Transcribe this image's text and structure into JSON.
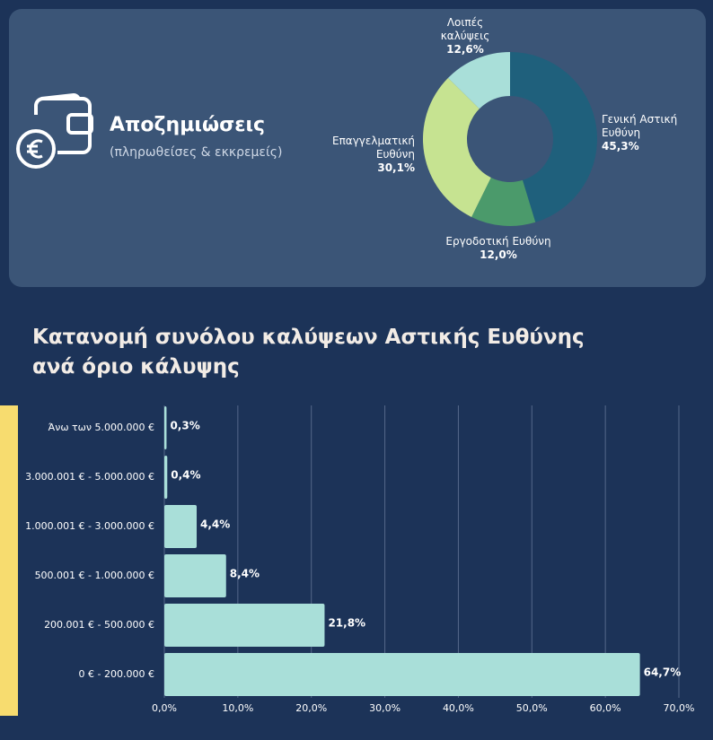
{
  "chart_data": [
    {
      "type": "donut",
      "title": "Αποζημιώσεις",
      "subtitle": "(πληρωθείσες & εκκρεμείς)",
      "categories": [
        "Γενική Αστική Ευθύνη",
        "Εργοδοτική Ευθύνη",
        "Επαγγελματική Ευθύνη",
        "Λοιπές καλύψεις"
      ],
      "values": [
        45.3,
        12.0,
        30.1,
        12.6
      ],
      "value_labels": [
        "45,3%",
        "12,0%",
        "30,1%",
        "12,6%"
      ],
      "colors": [
        "#1f607c",
        "#4b9a6b",
        "#c6e391",
        "#a9dfd9"
      ]
    },
    {
      "type": "hbar",
      "title": "Κατανομή συνόλου καλύψεων Αστικής Ευθύνης ανά όριο κάλυψης",
      "categories": [
        "Άνω των 5.000.000 €",
        "3.000.001 € - 5.000.000 €",
        "1.000.001 € - 3.000.000 €",
        "500.001 € - 1.000.000 €",
        "200.001 € - 500.000 €",
        "0 € - 200.000 €"
      ],
      "values": [
        0.3,
        0.4,
        4.4,
        8.4,
        21.8,
        64.7
      ],
      "value_labels": [
        "0,3%",
        "0,4%",
        "4,4%",
        "8,4%",
        "21,8%",
        "64,7%"
      ],
      "color": "#a9dfd9",
      "xlim": [
        0,
        70
      ],
      "xticks": [
        {
          "value": 0,
          "label": "0,0%"
        },
        {
          "value": 10,
          "label": "10,0%"
        },
        {
          "value": 20,
          "label": "20,0%"
        },
        {
          "value": 30,
          "label": "30,0%"
        },
        {
          "value": 40,
          "label": "40,0%"
        },
        {
          "value": 50,
          "label": "50,0%"
        },
        {
          "value": 60,
          "label": "60,0%"
        },
        {
          "value": 70,
          "label": "70,0%"
        }
      ],
      "grid": true
    }
  ]
}
